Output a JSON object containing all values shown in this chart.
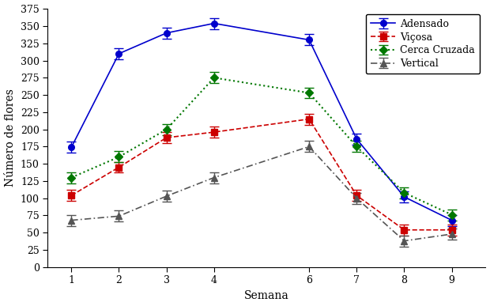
{
  "x": [
    1,
    2,
    3,
    4,
    6,
    7,
    8,
    9
  ],
  "adensado": [
    174,
    310,
    340,
    354,
    330,
    186,
    102,
    68
  ],
  "vicosa": [
    104,
    145,
    188,
    196,
    215,
    104,
    54,
    54
  ],
  "cerca_cruzada": [
    130,
    160,
    200,
    275,
    253,
    175,
    108,
    76
  ],
  "vertical": [
    68,
    74,
    103,
    130,
    175,
    100,
    38,
    48
  ],
  "adensado_color": "#0000cc",
  "vicosa_color": "#cc0000",
  "cerca_cruzada_color": "#007700",
  "vertical_color": "#555555",
  "xlabel": "Semana",
  "ylabel": "Número de flores",
  "ylim": [
    0,
    375
  ],
  "yticks": [
    0,
    25,
    50,
    75,
    100,
    125,
    150,
    175,
    200,
    225,
    250,
    275,
    300,
    325,
    350,
    375
  ],
  "xticks": [
    1,
    2,
    3,
    4,
    6,
    7,
    8,
    9
  ],
  "legend_labels": [
    "Adensado",
    "Viçosa",
    "Cerca Cruzada",
    "Vertical"
  ],
  "figsize": [
    6.2,
    3.87
  ],
  "dpi": 100
}
